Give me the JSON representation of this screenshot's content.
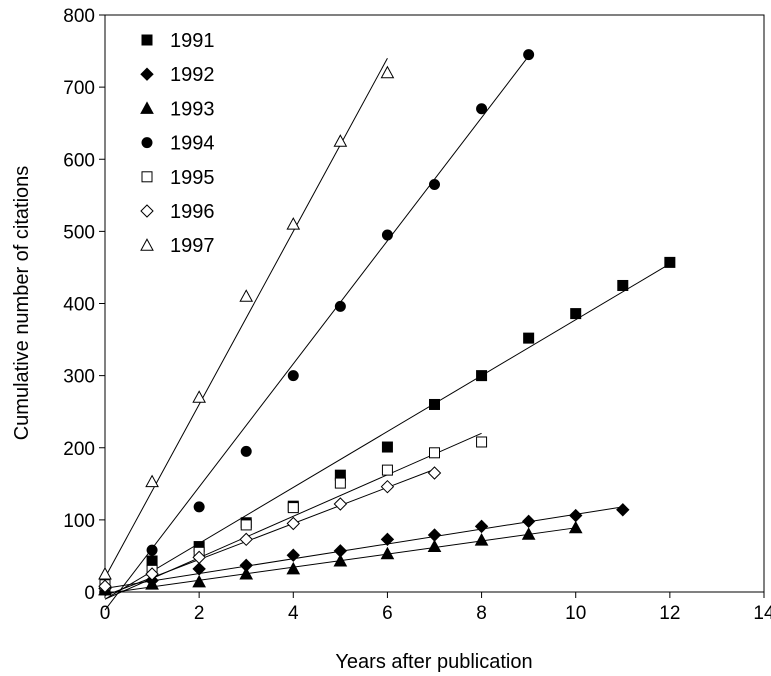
{
  "chart_data": {
    "type": "scatter",
    "title": "",
    "xlabel": "Years after publication",
    "ylabel": "Cumulative number of citations",
    "xlim": [
      0,
      14
    ],
    "ylim": [
      0,
      800
    ],
    "xticks": [
      "0",
      "2",
      "4",
      "6",
      "8",
      "10",
      "12",
      "14"
    ],
    "yticks": [
      "0",
      "100",
      "200",
      "300",
      "400",
      "500",
      "600",
      "700",
      "800"
    ],
    "grid": false,
    "legend_position": "top-left",
    "series": [
      {
        "name": "1991",
        "marker": "square-filled",
        "x": [
          0,
          1,
          2,
          3,
          4,
          5,
          6,
          7,
          8,
          9,
          10,
          11,
          12
        ],
        "y": [
          3,
          43,
          63,
          96,
          119,
          162,
          201,
          260,
          300,
          352,
          386,
          425,
          457
        ],
        "trend": [
          [
            0,
            -10
          ],
          [
            12,
            455
          ]
        ]
      },
      {
        "name": "1992",
        "marker": "diamond-filled",
        "x": [
          0,
          1,
          2,
          3,
          4,
          5,
          6,
          7,
          8,
          9,
          10,
          11
        ],
        "y": [
          5,
          16,
          32,
          37,
          51,
          57,
          73,
          79,
          91,
          98,
          106,
          114
        ],
        "trend": [
          [
            0,
            5
          ],
          [
            11,
            118
          ]
        ]
      },
      {
        "name": "1993",
        "marker": "triangle-filled",
        "x": [
          0,
          1,
          2,
          3,
          4,
          5,
          6,
          7,
          8,
          9,
          10
        ],
        "y": [
          3,
          11,
          14,
          25,
          32,
          43,
          53,
          63,
          72,
          80,
          89
        ],
        "trend": [
          [
            0,
            -2
          ],
          [
            10,
            89
          ]
        ]
      },
      {
        "name": "1994",
        "marker": "circle-filled",
        "x": [
          0,
          1,
          2,
          3,
          4,
          5,
          6,
          7,
          8,
          9
        ],
        "y": [
          18,
          58,
          118,
          195,
          300,
          396,
          495,
          565,
          670,
          745
        ],
        "trend": [
          [
            0,
            -25
          ],
          [
            9,
            743
          ]
        ]
      },
      {
        "name": "1995",
        "marker": "square-open",
        "x": [
          0,
          1,
          2,
          3,
          4,
          5,
          6,
          7,
          8
        ],
        "y": [
          10,
          30,
          55,
          93,
          117,
          151,
          169,
          193,
          208
        ],
        "trend": [
          [
            0,
            -10
          ],
          [
            8,
            220
          ]
        ]
      },
      {
        "name": "1996",
        "marker": "diamond-open",
        "x": [
          0,
          1,
          2,
          3,
          4,
          5,
          6,
          7
        ],
        "y": [
          8,
          25,
          48,
          73,
          95,
          122,
          146,
          165
        ],
        "trend": [
          [
            0,
            -5
          ],
          [
            7,
            170
          ]
        ]
      },
      {
        "name": "1997",
        "marker": "triangle-open",
        "x": [
          0,
          1,
          2,
          3,
          4,
          5,
          6
        ],
        "y": [
          25,
          153,
          270,
          410,
          510,
          625,
          720
        ],
        "trend": [
          [
            0,
            20
          ],
          [
            6,
            740
          ]
        ]
      }
    ]
  }
}
